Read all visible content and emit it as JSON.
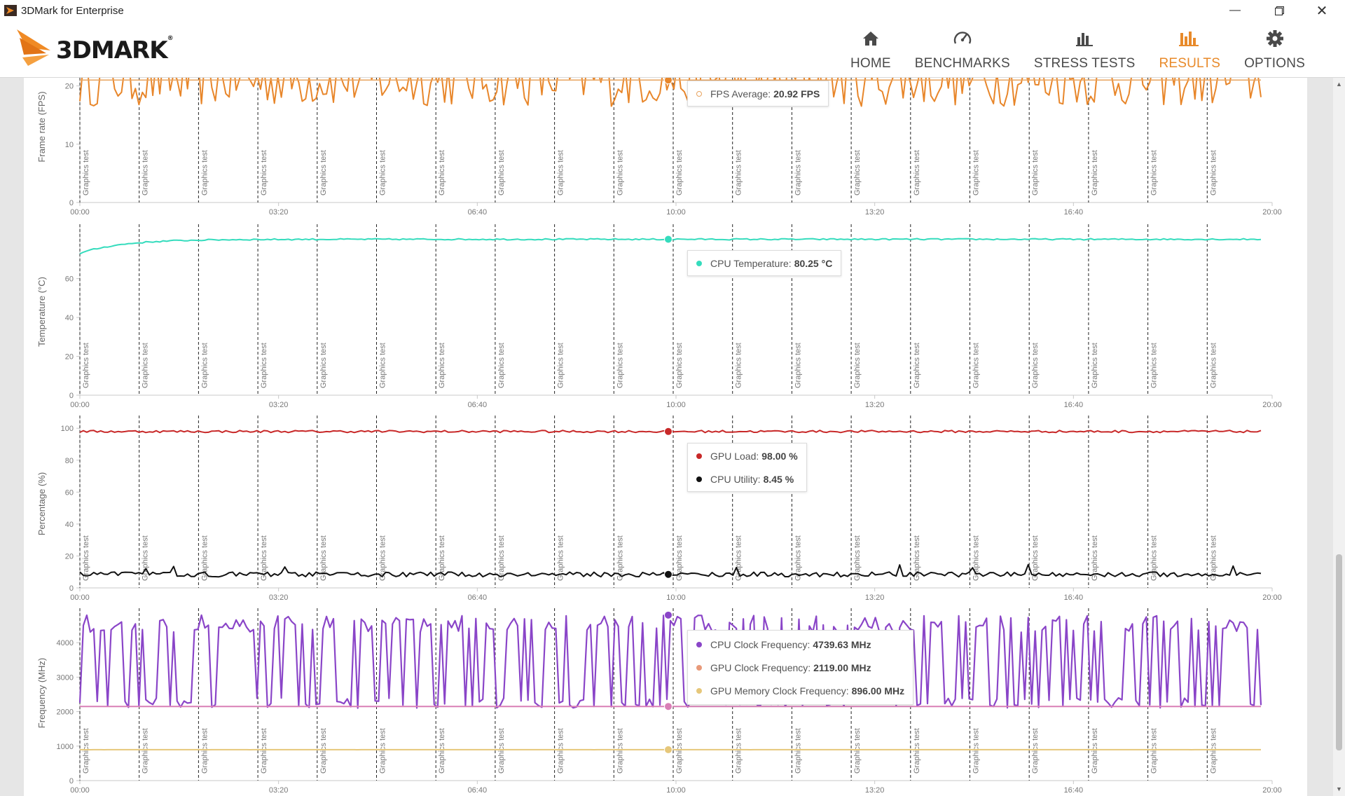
{
  "window": {
    "title": "3DMark for Enterprise",
    "controls": [
      "minimize",
      "restore",
      "close"
    ]
  },
  "brand": {
    "name": "3DMARK",
    "mark": "®"
  },
  "nav": {
    "items": [
      {
        "label": "HOME",
        "icon": "home-icon",
        "active": false
      },
      {
        "label": "BENCHMARKS",
        "icon": "gauge-icon",
        "active": false
      },
      {
        "label": "STRESS TESTS",
        "icon": "bar-chart-icon",
        "active": false
      },
      {
        "label": "RESULTS",
        "icon": "results-icon",
        "active": true
      },
      {
        "label": "OPTIONS",
        "icon": "gear-icon",
        "active": false
      }
    ],
    "active_color": "#e88a2a"
  },
  "colors": {
    "fps": "#e8862a",
    "cpu_temp": "#35dcbd",
    "gpu_load": "#c82828",
    "cpu_util": "#111111",
    "cpu_clock": "#8a45c8",
    "gpu_clock": "#d97fb6",
    "gpu_mem_clock": "#e6c77a"
  },
  "chart_data": [
    {
      "type": "line",
      "ylabel": "Frame rate (FPS)",
      "ylim": [
        0,
        25
      ],
      "y_ticks": [
        "0",
        "10",
        "20"
      ],
      "x_ticks": [
        "00:00",
        "03:20",
        "06:40",
        "10:00",
        "13:20",
        "16:40",
        "20:00"
      ],
      "annotation_label": "Graphics test",
      "annotation_count": 20,
      "series": [
        {
          "name": "FPS Average",
          "mean": 21,
          "range": [
            16,
            25
          ],
          "color": "#e8862a"
        }
      ],
      "tooltip": [
        {
          "name": "FPS Average",
          "value": "20.92 FPS",
          "color": "#e8a35e",
          "hollow": true
        }
      ]
    },
    {
      "type": "line",
      "ylabel": "Temperature (°C)",
      "ylim": [
        0,
        88
      ],
      "y_ticks": [
        "0",
        "20",
        "40",
        "60"
      ],
      "x_ticks": [
        "00:00",
        "03:20",
        "06:40",
        "10:00",
        "13:20",
        "16:40",
        "20:00"
      ],
      "annotation_label": "Graphics test",
      "annotation_count": 20,
      "series": [
        {
          "name": "CPU Temperature",
          "start": 73,
          "plateau": 80.25,
          "color": "#35dcbd"
        }
      ],
      "tooltip": [
        {
          "name": "CPU Temperature",
          "value": "80.25 °C",
          "color": "#35dcbd",
          "hollow": false
        }
      ]
    },
    {
      "type": "line",
      "ylabel": "Percentage (%)",
      "ylim": [
        0,
        108
      ],
      "y_ticks": [
        "0",
        "20",
        "40",
        "60",
        "80",
        "100"
      ],
      "x_ticks": [
        "00:00",
        "03:20",
        "06:40",
        "10:00",
        "13:20",
        "16:40",
        "20:00"
      ],
      "annotation_label": "Graphics test",
      "annotation_count": 20,
      "series": [
        {
          "name": "GPU Load",
          "mean": 98,
          "color": "#c82828"
        },
        {
          "name": "CPU Utility",
          "mean": 8.45,
          "color": "#111111"
        }
      ],
      "tooltip": [
        {
          "name": "GPU Load",
          "value": "98.00 %",
          "color": "#c82828",
          "hollow": false
        },
        {
          "name": "CPU Utility",
          "value": "8.45 %",
          "color": "#111111",
          "hollow": false
        }
      ]
    },
    {
      "type": "line",
      "ylabel": "Frequency (MHz)",
      "ylim": [
        0,
        5000
      ],
      "y_ticks": [
        "0",
        "1000",
        "2000",
        "3000",
        "4000"
      ],
      "x_ticks": [
        "00:00",
        "03:20",
        "06:40",
        "10:00",
        "13:20",
        "16:40",
        "20:00"
      ],
      "annotation_label": "Graphics test",
      "annotation_count": 20,
      "series": [
        {
          "name": "CPU Clock Frequency",
          "high": 4800,
          "low": 2100,
          "color": "#8a45c8"
        },
        {
          "name": "GPU Clock Frequency",
          "mean": 2150,
          "color": "#d97fb6"
        },
        {
          "name": "GPU Memory Clock Frequency",
          "mean": 896,
          "color": "#e6c77a"
        }
      ],
      "tooltip": [
        {
          "name": "CPU Clock Frequency",
          "value": "4739.63 MHz",
          "color": "#8a45c8",
          "hollow": false
        },
        {
          "name": "GPU Clock Frequency",
          "value": "2119.00 MHz",
          "color": "#e89a7a",
          "hollow": false
        },
        {
          "name": "GPU Memory Clock Frequency",
          "value": "896.00 MHz",
          "color": "#e6c77a",
          "hollow": false
        }
      ]
    }
  ]
}
